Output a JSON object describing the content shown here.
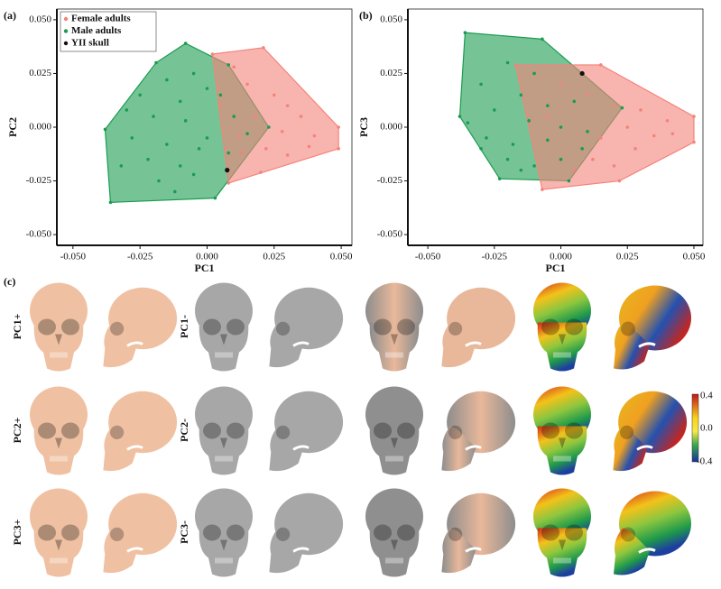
{
  "chart_data": [
    {
      "type": "scatter",
      "panel_label": "(a)",
      "x_label": "PC1",
      "y_label": "PC2",
      "legend": "upper left",
      "xlim": [
        -0.056,
        0.054
      ],
      "ylim": [
        -0.055,
        0.055
      ],
      "xticks": [
        {
          "value": -0.05,
          "label": "-0.050"
        },
        {
          "value": -0.025,
          "label": "-0.025"
        },
        {
          "value": 0,
          "label": "0.000"
        },
        {
          "value": 0.025,
          "label": "0.025"
        },
        {
          "value": 0.05,
          "label": "0.050"
        }
      ],
      "yticks": [
        {
          "value": -0.05,
          "label": "-0.050"
        },
        {
          "value": -0.025,
          "label": "-0.025"
        },
        {
          "value": 0,
          "label": "0.000"
        },
        {
          "value": 0.025,
          "label": "0.025"
        },
        {
          "value": 0.05,
          "label": "0.050"
        }
      ],
      "series": [
        {
          "name": "Female adults",
          "color": "#f4837a",
          "x": [
            0.002,
            0.021,
            0.049,
            0.049,
            0.02,
            0.008,
            0.01,
            0.015,
            0.025,
            0.03,
            0.035,
            0.018,
            0.028,
            0.04,
            0.022,
            0.013,
            0.03,
            0.005,
            0.012,
            0.038
          ],
          "values": [
            0.034,
            0.037,
            0,
            -0.01,
            -0.021,
            -0.026,
            0.028,
            0.02,
            0.015,
            0.01,
            0.005,
            0.005,
            -0.002,
            -0.004,
            -0.01,
            -0.012,
            -0.013,
            0.01,
            -0.004,
            -0.009
          ]
        },
        {
          "name": "Male adults",
          "color": "#1a9c50",
          "x": [
            -0.008,
            0.008,
            0.023,
            0.003,
            -0.036,
            -0.038,
            -0.019,
            -0.015,
            -0.005,
            0,
            -0.025,
            -0.01,
            0.005,
            -0.02,
            -0.03,
            -0.008,
            0.01,
            0.015,
            -0.028,
            -0.015,
            -0.003,
            0.008,
            -0.022,
            -0.01,
            -0.032,
            -0.018,
            -0.005,
            0,
            -0.012
          ],
          "values": [
            0.039,
            0.029,
            0,
            -0.033,
            -0.035,
            -0.001,
            0.03,
            0.022,
            0.025,
            0.018,
            0.015,
            0.012,
            0.015,
            0.005,
            0.008,
            0.003,
            0.005,
            -0.003,
            -0.005,
            -0.008,
            -0.01,
            -0.012,
            -0.015,
            -0.018,
            -0.018,
            -0.025,
            -0.022,
            -0.005,
            -0.03
          ]
        },
        {
          "name": "YII skull",
          "color": "#111111",
          "x": [
            0.0075
          ],
          "values": [
            -0.02
          ]
        }
      ]
    },
    {
      "type": "scatter",
      "panel_label": "(b)",
      "x_label": "PC1",
      "y_label": "PC3",
      "xlim": [
        -0.0575,
        0.0534
      ],
      "ylim": [
        -0.055,
        0.055
      ],
      "xticks": [
        {
          "value": -0.05,
          "label": "-0.050"
        },
        {
          "value": -0.025,
          "label": "-0.025"
        },
        {
          "value": 0,
          "label": "0.000"
        },
        {
          "value": 0.025,
          "label": "0.025"
        },
        {
          "value": 0.05,
          "label": "0.050"
        }
      ],
      "yticks": [
        {
          "value": -0.05,
          "label": "-0.050"
        },
        {
          "value": -0.025,
          "label": "-0.025"
        },
        {
          "value": 0,
          "label": "0.000"
        },
        {
          "value": 0.025,
          "label": "0.025"
        },
        {
          "value": 0.05,
          "label": "0.050"
        }
      ],
      "series": [
        {
          "color": "#f4837a",
          "x": [
            -0.017,
            0.015,
            0.05,
            0.05,
            0.022,
            -0.007,
            0,
            0.01,
            0.02,
            0.03,
            0.04,
            0.025,
            0.035,
            0.015,
            0.028,
            0.012,
            0.005,
            0.02,
            -0.005,
            0.042
          ],
          "values": [
            0.029,
            0.029,
            0.005,
            -0.007,
            -0.025,
            -0.029,
            0.02,
            0.015,
            0.01,
            0.008,
            0.003,
            0,
            -0.004,
            -0.005,
            -0.01,
            -0.015,
            -0.02,
            -0.018,
            0.005,
            -0.003
          ]
        },
        {
          "color": "#1a9c50",
          "x": [
            -0.036,
            -0.007,
            0.023,
            0.003,
            -0.023,
            -0.038,
            -0.02,
            -0.01,
            -0.03,
            -0.015,
            -0.005,
            0.005,
            -0.025,
            -0.035,
            -0.012,
            0,
            0.01,
            -0.028,
            -0.018,
            -0.005,
            0.008,
            -0.02,
            -0.01,
            -0.03,
            -0.015,
            0
          ],
          "values": [
            0.044,
            0.041,
            0.009,
            -0.025,
            -0.024,
            0.005,
            0.03,
            0.025,
            0.02,
            0.015,
            0.01,
            0.012,
            0.008,
            0.002,
            0.003,
            0,
            -0.002,
            -0.005,
            -0.008,
            -0.006,
            -0.01,
            -0.015,
            -0.018,
            -0.01,
            -0.02,
            -0.015
          ]
        },
        {
          "color": "#111111",
          "x": [
            0.008
          ],
          "values": [
            0.025
          ]
        }
      ]
    }
  ],
  "panel_c": {
    "label": "(c)",
    "rows": [
      [
        "PC1+",
        "PC1-"
      ],
      [
        "PC2+",
        "PC2-"
      ],
      [
        "PC3+",
        "PC3-"
      ]
    ],
    "colorbar_ticks": [
      "0.4",
      "0.0",
      "-0.4"
    ]
  }
}
